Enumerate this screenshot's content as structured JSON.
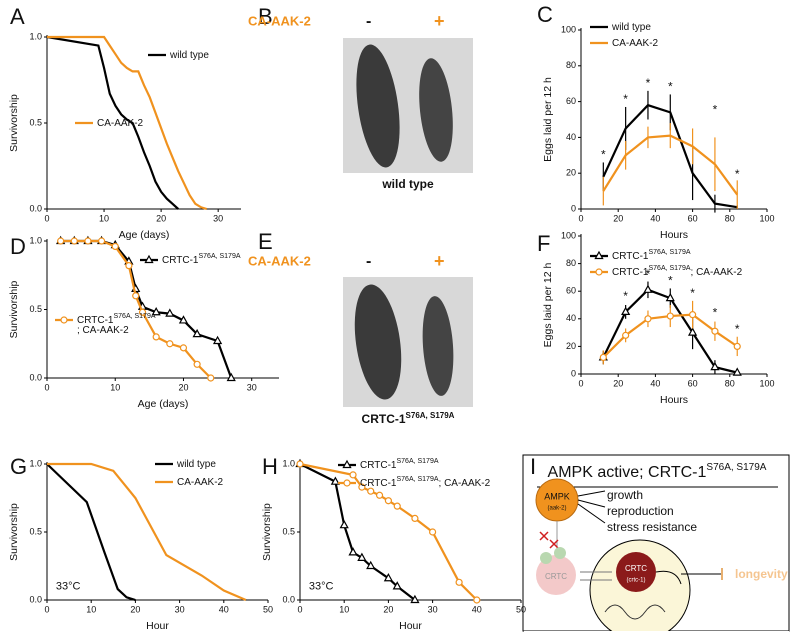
{
  "chart_data": [
    {
      "type": "line",
      "panel": "A",
      "xlabel": "Age (days)",
      "ylabel": "Survivorship",
      "xlim": [
        0,
        34
      ],
      "xticks": [
        0,
        10,
        20,
        30
      ],
      "ylim": [
        0,
        1
      ],
      "yticks": [
        {
          "value": 0,
          "label": "0.0"
        },
        {
          "value": 0.5,
          "label": "0.5"
        },
        {
          "value": 1,
          "label": "1.0"
        }
      ],
      "series": [
        {
          "name": "wild type",
          "color": "#000000",
          "marker": "none",
          "x": [
            0,
            9,
            10,
            11,
            12,
            13,
            14,
            15,
            16,
            17,
            18,
            19,
            20,
            21,
            22,
            23
          ],
          "values": [
            1,
            0.95,
            0.82,
            0.67,
            0.6,
            0.55,
            0.52,
            0.5,
            0.42,
            0.33,
            0.25,
            0.16,
            0.1,
            0.06,
            0.03,
            0
          ]
        },
        {
          "name": "CA-AAK-2",
          "color": "#f0921e",
          "marker": "none",
          "x": [
            0,
            10,
            11,
            12,
            13,
            14,
            15,
            16,
            17,
            18,
            19,
            20,
            21,
            22,
            23,
            24,
            25,
            26,
            27,
            28
          ],
          "values": [
            1,
            1,
            0.95,
            0.9,
            0.85,
            0.82,
            0.8,
            0.8,
            0.72,
            0.65,
            0.56,
            0.47,
            0.38,
            0.3,
            0.22,
            0.15,
            0.08,
            0.03,
            0.01,
            0
          ]
        }
      ]
    },
    {
      "type": "line",
      "panel": "C",
      "xlabel": "Hours",
      "ylabel": "Eggs laid per 12 h",
      "xlim": [
        0,
        100
      ],
      "xticks": [
        0,
        20,
        40,
        60,
        80,
        100
      ],
      "ylim": [
        0,
        100
      ],
      "yticks": [
        0,
        20,
        40,
        60,
        80,
        100
      ],
      "series": [
        {
          "name": "wild type",
          "color": "#000000",
          "marker": "none",
          "x": [
            12,
            24,
            36,
            48,
            60,
            72,
            84
          ],
          "values": [
            18,
            45,
            58,
            54,
            20,
            3,
            1
          ],
          "errors": [
            8,
            12,
            8,
            10,
            15,
            5,
            1
          ]
        },
        {
          "name": "CA-AAK-2",
          "color": "#f0921e",
          "marker": "none",
          "x": [
            12,
            24,
            36,
            48,
            60,
            72,
            84
          ],
          "values": [
            10,
            30,
            40,
            41,
            35,
            25,
            8
          ],
          "errors": [
            8,
            8,
            6,
            7,
            10,
            15,
            8
          ]
        }
      ],
      "annotations": [
        {
          "text": "*",
          "x": 12,
          "y": 30
        },
        {
          "text": "*",
          "x": 24,
          "y": 61
        },
        {
          "text": "*",
          "x": 36,
          "y": 70
        },
        {
          "text": "*",
          "x": 48,
          "y": 68
        },
        {
          "text": "*",
          "x": 72,
          "y": 55
        },
        {
          "text": "*",
          "x": 84,
          "y": 19
        }
      ]
    },
    {
      "type": "line",
      "panel": "D",
      "xlabel": "Age (days)",
      "ylabel": "Survivorship",
      "xlim": [
        0,
        34
      ],
      "xticks": [
        0,
        10,
        20,
        30
      ],
      "ylim": [
        0,
        1
      ],
      "yticks": [
        {
          "value": 0,
          "label": "0.0"
        },
        {
          "value": 0.5,
          "label": "0.5"
        },
        {
          "value": 1,
          "label": "1.0"
        }
      ],
      "series": [
        {
          "name": "CRTC-1",
          "name_sup": "S76A, S179A",
          "color": "#000000",
          "marker": "triangle",
          "x": [
            2,
            4,
            6,
            8,
            10,
            12,
            13,
            14,
            16,
            18,
            20,
            22,
            25,
            27
          ],
          "values": [
            1,
            1,
            1,
            1,
            0.97,
            0.85,
            0.65,
            0.52,
            0.48,
            0.47,
            0.42,
            0.32,
            0.27,
            0
          ]
        },
        {
          "name": "CRTC-1",
          "name_sup": "S76A, S179A",
          "name_tail": "; CA-AAK-2",
          "color": "#f0921e",
          "marker": "circle",
          "x": [
            2,
            4,
            6,
            8,
            10,
            12,
            13,
            14,
            16,
            18,
            20,
            22,
            24
          ],
          "values": [
            1,
            1,
            1,
            1,
            0.96,
            0.82,
            0.6,
            0.48,
            0.3,
            0.25,
            0.22,
            0.1,
            0
          ]
        }
      ]
    },
    {
      "type": "line",
      "panel": "F",
      "xlabel": "Hours",
      "ylabel": "Eggs laid per 12 h",
      "xlim": [
        0,
        100
      ],
      "xticks": [
        0,
        20,
        40,
        60,
        80,
        100
      ],
      "ylim": [
        0,
        100
      ],
      "yticks": [
        0,
        20,
        40,
        60,
        80,
        100
      ],
      "series": [
        {
          "name": "CRTC-1",
          "name_sup": "S76A, S179A",
          "color": "#000000",
          "marker": "triangle",
          "x": [
            12,
            24,
            36,
            48,
            60,
            72,
            84
          ],
          "values": [
            12,
            45,
            61,
            55,
            30,
            5,
            1
          ],
          "errors": [
            5,
            5,
            6,
            7,
            12,
            5,
            1
          ]
        },
        {
          "name": "CRTC-1",
          "name_sup": "S76A, S179A",
          "name_tail": "; CA-AAK-2",
          "color": "#f0921e",
          "marker": "circle",
          "x": [
            12,
            24,
            36,
            48,
            60,
            72,
            84
          ],
          "values": [
            12,
            28,
            40,
            42,
            43,
            31,
            20
          ],
          "errors": [
            5,
            5,
            6,
            8,
            10,
            7,
            7
          ]
        }
      ],
      "annotations": [
        {
          "text": "*",
          "x": 24,
          "y": 56
        },
        {
          "text": "*",
          "x": 36,
          "y": 72
        },
        {
          "text": "*",
          "x": 48,
          "y": 67
        },
        {
          "text": "*",
          "x": 60,
          "y": 58
        },
        {
          "text": "*",
          "x": 72,
          "y": 44
        },
        {
          "text": "*",
          "x": 84,
          "y": 32
        }
      ]
    },
    {
      "type": "line",
      "panel": "G",
      "xlabel": "Hour",
      "ylabel": "Survivorship",
      "xlim": [
        0,
        50
      ],
      "xticks": [
        0,
        10,
        20,
        30,
        40,
        50
      ],
      "ylim": [
        0,
        1
      ],
      "yticks": [
        {
          "value": 0,
          "label": "0.0"
        },
        {
          "value": 0.5,
          "label": "0.5"
        },
        {
          "value": 1,
          "label": "1.0"
        }
      ],
      "series": [
        {
          "name": "wild type",
          "color": "#000000",
          "marker": "none",
          "x": [
            0,
            9,
            13,
            16,
            18,
            20
          ],
          "values": [
            1,
            0.72,
            0.35,
            0.08,
            0.02,
            0
          ]
        },
        {
          "name": "CA-AAK-2",
          "color": "#f0921e",
          "marker": "none",
          "x": [
            0,
            10,
            15,
            20,
            27,
            35,
            40,
            45
          ],
          "values": [
            1,
            1,
            0.95,
            0.75,
            0.33,
            0.18,
            0.07,
            0
          ]
        }
      ],
      "annotations": [
        {
          "text": "33°C",
          "x": 2,
          "y": 0.1
        }
      ]
    },
    {
      "type": "line",
      "panel": "H",
      "xlabel": "Hour",
      "ylabel": "Survivorship",
      "xlim": [
        0,
        50
      ],
      "xticks": [
        0,
        10,
        20,
        30,
        40,
        50
      ],
      "ylim": [
        0,
        1
      ],
      "yticks": [
        {
          "value": 0,
          "label": "0.0"
        },
        {
          "value": 0.5,
          "label": "0.5"
        },
        {
          "value": 1,
          "label": "1.0"
        }
      ],
      "series": [
        {
          "name": "CRTC-1",
          "name_sup": "S76A, S179A",
          "color": "#000000",
          "marker": "triangle",
          "x": [
            0,
            8,
            10,
            12,
            14,
            16,
            20,
            22,
            26
          ],
          "values": [
            1,
            0.87,
            0.55,
            0.35,
            0.31,
            0.25,
            0.16,
            0.1,
            0
          ]
        },
        {
          "name": "CRTC-1",
          "name_sup": "S76A, S179A",
          "name_tail": "; CA-AAK-2",
          "color": "#f0921e",
          "marker": "circle",
          "x": [
            0,
            12,
            14,
            16,
            18,
            20,
            22,
            26,
            30,
            36,
            40
          ],
          "values": [
            1,
            0.92,
            0.83,
            0.8,
            0.77,
            0.73,
            0.69,
            0.6,
            0.5,
            0.13,
            0
          ]
        }
      ],
      "annotations": [
        {
          "text": "33°C",
          "x": 2,
          "y": 0.1
        }
      ]
    }
  ],
  "images": {
    "B": {
      "panel": "B",
      "treatment": "CA-AAK-2",
      "minus": "-",
      "plus": "+",
      "caption": "wild type"
    },
    "E": {
      "panel": "E",
      "treatment": "CA-AAK-2",
      "minus": "-",
      "plus": "+",
      "caption": "CRTC-1",
      "caption_sup": "S76A, S179A"
    }
  },
  "diagram": {
    "panel": "I",
    "title": "AMPK active; CRTC-1",
    "title_sup": "S76A, S179A",
    "ampk": "AMPK",
    "ampk_gene": "(aak-2)",
    "outputs": [
      "growth",
      "reproduction",
      "stress resistance"
    ],
    "crtc_cyto": "CRTC",
    "crtc_nuc": "CRTC",
    "crtc_gene": "(crtc-1)",
    "longevity": "longevity"
  }
}
